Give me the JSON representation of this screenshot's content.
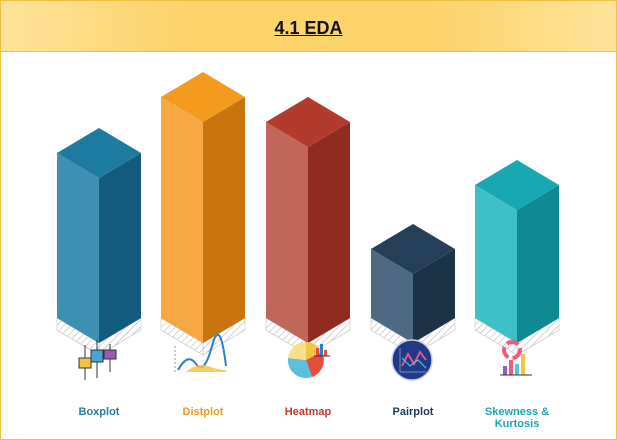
{
  "title": "4.1 EDA",
  "bars": [
    {
      "label": "Boxplot",
      "color": "#1f7fa6",
      "icon": "boxplot-icon"
    },
    {
      "label": "Distplot",
      "color": "#f39a1f",
      "icon": "distplot-icon"
    },
    {
      "label": "Heatmap",
      "color": "#c0392b",
      "icon": "heatmap-icon"
    },
    {
      "label": "Pairplot",
      "color": "#1f3a52",
      "icon": "pairplot-icon"
    },
    {
      "label": "Skewness & Kurtosis",
      "color": "#16a8b3",
      "icon": "skewness-kurtosis-icon"
    }
  ]
}
